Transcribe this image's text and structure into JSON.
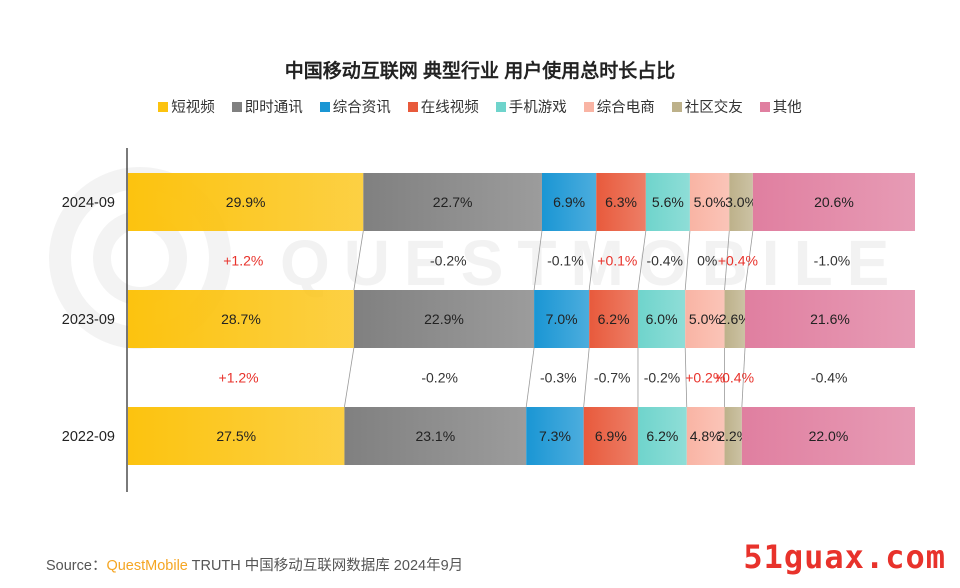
{
  "title": "中国移动互联网 典型行业 用户使用总时长占比",
  "colors": {
    "短视频": "#fcc30f",
    "即时通讯": "#808080",
    "综合资讯": "#1a96d4",
    "在线视频": "#e85a3c",
    "手机游戏": "#6fd4cc",
    "综合电商": "#f9b4a4",
    "社区交友": "#bdb18a",
    "其他": "#e07fa0",
    "positive_change": "#e8322b",
    "negative_change": "#333333"
  },
  "watermark": "QUESTMOBILE",
  "chart_data": {
    "type": "bar",
    "orientation": "horizontal",
    "stacked": true,
    "title": "中国移动互联网 典型行业 用户使用总时长占比",
    "categories": [
      "2024-09",
      "2023-09",
      "2022-09"
    ],
    "series": [
      {
        "name": "短视频",
        "values": [
          29.9,
          28.7,
          27.5
        ],
        "labels": [
          "29.9%",
          "28.7%",
          "27.5%"
        ]
      },
      {
        "name": "即时通讯",
        "values": [
          22.7,
          22.9,
          23.1
        ],
        "labels": [
          "22.7%",
          "22.9%",
          "23.1%"
        ]
      },
      {
        "name": "综合资讯",
        "values": [
          6.9,
          7.0,
          7.3
        ],
        "labels": [
          "6.9%",
          "7.0%",
          "7.3%"
        ]
      },
      {
        "name": "在线视频",
        "values": [
          6.3,
          6.2,
          6.9
        ],
        "labels": [
          "6.3%",
          "6.2%",
          "6.9%"
        ]
      },
      {
        "name": "手机游戏",
        "values": [
          5.6,
          6.0,
          6.2
        ],
        "labels": [
          "5.6%",
          "6.0%",
          "6.2%"
        ]
      },
      {
        "name": "综合电商",
        "values": [
          5.0,
          5.0,
          4.8
        ],
        "labels": [
          "5.0%",
          "5.0%",
          "4.8%"
        ]
      },
      {
        "name": "社区交友",
        "values": [
          3.0,
          2.6,
          2.2
        ],
        "labels": [
          "3.0%",
          "2.6%",
          "2.2%"
        ]
      },
      {
        "name": "其他",
        "values": [
          20.6,
          21.6,
          22.0
        ],
        "labels": [
          "20.6%",
          "21.6%",
          "22.0%"
        ]
      }
    ],
    "changes": [
      {
        "between": [
          "2024-09",
          "2023-09"
        ],
        "labels": [
          "+1.2%",
          "-0.2%",
          "-0.1%",
          "+0.1%",
          "-0.4%",
          "0%",
          "+0.4%",
          "-1.0%"
        ]
      },
      {
        "between": [
          "2023-09",
          "2022-09"
        ],
        "labels": [
          "+1.2%",
          "-0.2%",
          "-0.3%",
          "-0.7%",
          "-0.2%",
          "+0.2%",
          "+0.4%",
          "-0.4%"
        ]
      }
    ],
    "legend_position": "top",
    "grid": false
  },
  "source": {
    "prefix": "Source：",
    "brand": "QuestMobile",
    "text": " TRUTH 中国移动互联网数据库 2024年9月"
  },
  "site_mark": "51guax.com"
}
